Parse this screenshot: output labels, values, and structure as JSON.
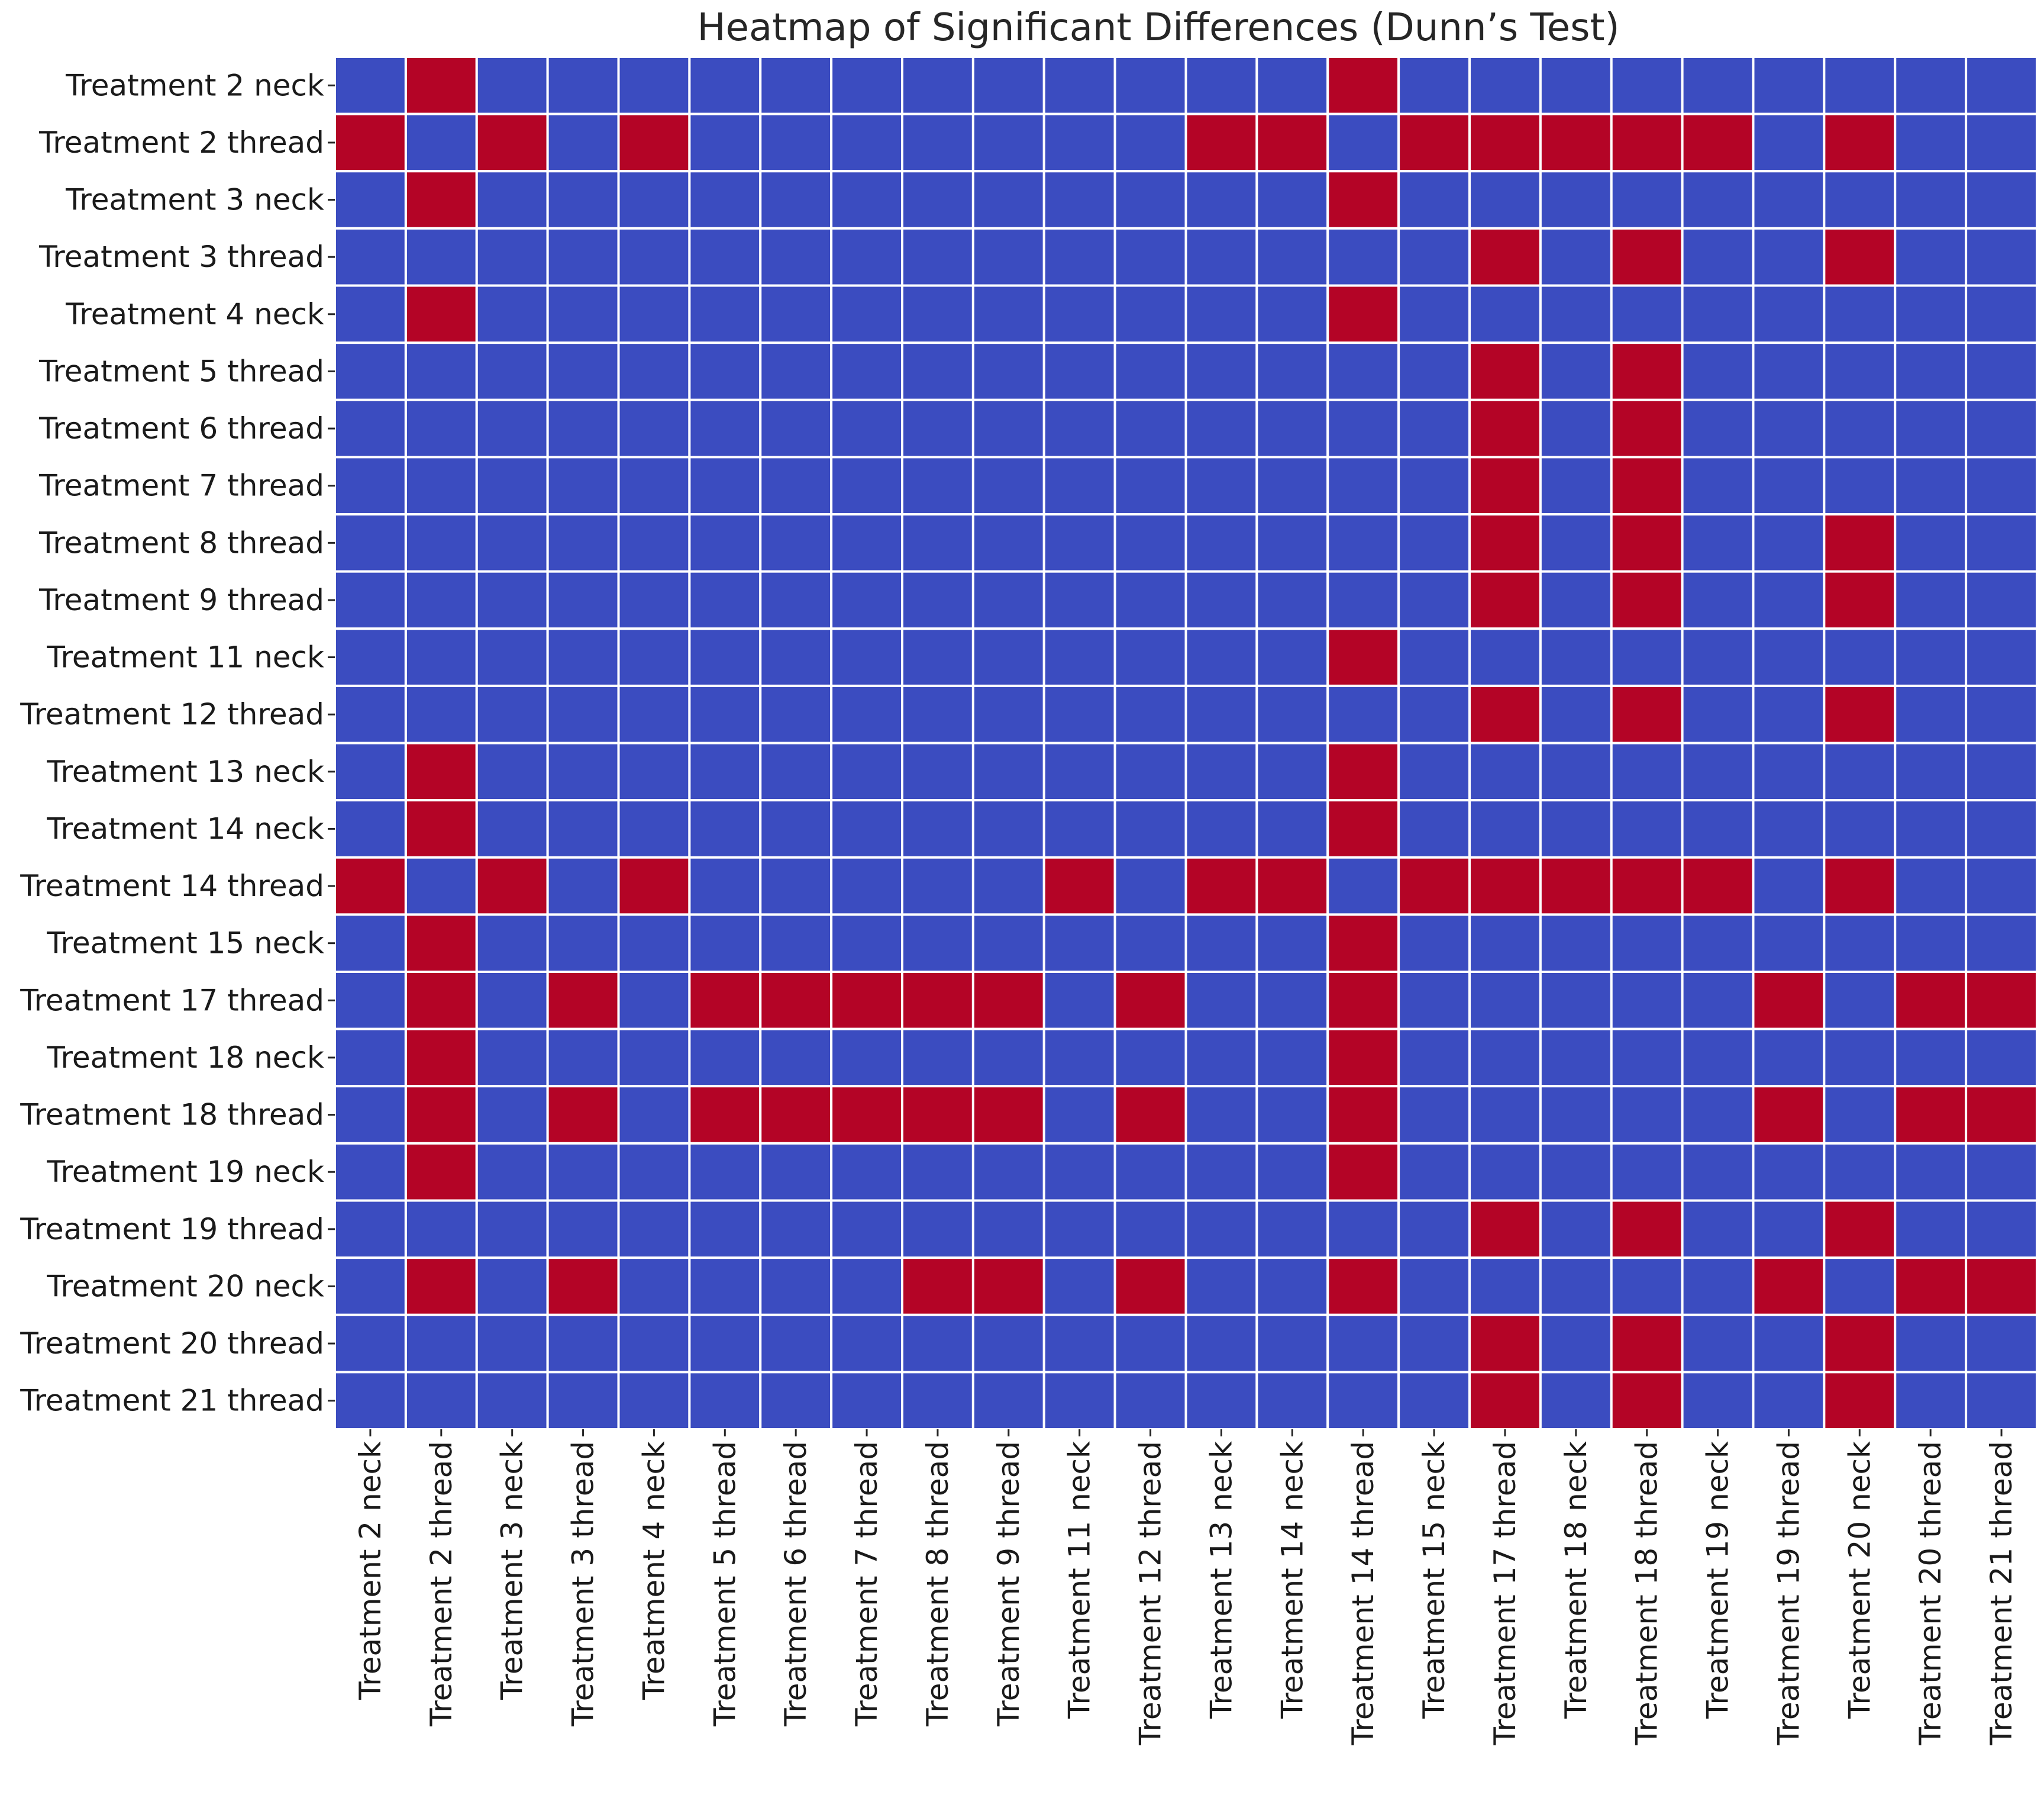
{
  "chart_data": {
    "type": "heatmap",
    "title": "Heatmap of Significant Differences (Dunn’s Test)",
    "xlabel": "",
    "ylabel": "",
    "colorbar": false,
    "value_meaning": "1 = significant difference (red), 0 = not significant (blue)",
    "colors": {
      "significant": "#b40426",
      "not_significant": "#3b4cc0",
      "gridline": "#ffffff"
    },
    "row_labels": [
      "Treatment 2 neck",
      "Treatment 2 thread",
      "Treatment 3 neck",
      "Treatment 3 thread",
      "Treatment 4 neck",
      "Treatment 5 thread",
      "Treatment 6 thread",
      "Treatment 7 thread",
      "Treatment 8 thread",
      "Treatment 9 thread",
      "Treatment 11 neck",
      "Treatment 12 thread",
      "Treatment 13 neck",
      "Treatment 14 neck",
      "Treatment 14 thread",
      "Treatment 15 neck",
      "Treatment 17 thread",
      "Treatment 18 neck",
      "Treatment 18 thread",
      "Treatment 19 neck",
      "Treatment 19 thread",
      "Treatment 20 neck",
      "Treatment 20 thread",
      "Treatment 21 thread"
    ],
    "col_labels": [
      "Treatment 2 neck",
      "Treatment 2 thread",
      "Treatment 3 neck",
      "Treatment 3 thread",
      "Treatment 4 neck",
      "Treatment 5 thread",
      "Treatment 6 thread",
      "Treatment 7 thread",
      "Treatment 8 thread",
      "Treatment 9 thread",
      "Treatment 11 neck",
      "Treatment 12 thread",
      "Treatment 13 neck",
      "Treatment 14 neck",
      "Treatment 14 thread",
      "Treatment 15 neck",
      "Treatment 17 thread",
      "Treatment 18 neck",
      "Treatment 18 thread",
      "Treatment 19 neck",
      "Treatment 19 thread",
      "Treatment 20 neck",
      "Treatment 20 thread",
      "Treatment 21 thread"
    ],
    "matrix": [
      [
        0,
        1,
        0,
        0,
        0,
        0,
        0,
        0,
        0,
        0,
        0,
        0,
        0,
        0,
        1,
        0,
        0,
        0,
        0,
        0,
        0,
        0,
        0,
        0
      ],
      [
        1,
        0,
        1,
        0,
        1,
        0,
        0,
        0,
        0,
        0,
        0,
        0,
        1,
        1,
        0,
        1,
        1,
        1,
        1,
        1,
        0,
        1,
        0,
        0
      ],
      [
        0,
        1,
        0,
        0,
        0,
        0,
        0,
        0,
        0,
        0,
        0,
        0,
        0,
        0,
        1,
        0,
        0,
        0,
        0,
        0,
        0,
        0,
        0,
        0
      ],
      [
        0,
        0,
        0,
        0,
        0,
        0,
        0,
        0,
        0,
        0,
        0,
        0,
        0,
        0,
        0,
        0,
        1,
        0,
        1,
        0,
        0,
        1,
        0,
        0
      ],
      [
        0,
        1,
        0,
        0,
        0,
        0,
        0,
        0,
        0,
        0,
        0,
        0,
        0,
        0,
        1,
        0,
        0,
        0,
        0,
        0,
        0,
        0,
        0,
        0
      ],
      [
        0,
        0,
        0,
        0,
        0,
        0,
        0,
        0,
        0,
        0,
        0,
        0,
        0,
        0,
        0,
        0,
        1,
        0,
        1,
        0,
        0,
        0,
        0,
        0
      ],
      [
        0,
        0,
        0,
        0,
        0,
        0,
        0,
        0,
        0,
        0,
        0,
        0,
        0,
        0,
        0,
        0,
        1,
        0,
        1,
        0,
        0,
        0,
        0,
        0
      ],
      [
        0,
        0,
        0,
        0,
        0,
        0,
        0,
        0,
        0,
        0,
        0,
        0,
        0,
        0,
        0,
        0,
        1,
        0,
        1,
        0,
        0,
        0,
        0,
        0
      ],
      [
        0,
        0,
        0,
        0,
        0,
        0,
        0,
        0,
        0,
        0,
        0,
        0,
        0,
        0,
        0,
        0,
        1,
        0,
        1,
        0,
        0,
        1,
        0,
        0
      ],
      [
        0,
        0,
        0,
        0,
        0,
        0,
        0,
        0,
        0,
        0,
        0,
        0,
        0,
        0,
        0,
        0,
        1,
        0,
        1,
        0,
        0,
        1,
        0,
        0
      ],
      [
        0,
        0,
        0,
        0,
        0,
        0,
        0,
        0,
        0,
        0,
        0,
        0,
        0,
        0,
        1,
        0,
        0,
        0,
        0,
        0,
        0,
        0,
        0,
        0
      ],
      [
        0,
        0,
        0,
        0,
        0,
        0,
        0,
        0,
        0,
        0,
        0,
        0,
        0,
        0,
        0,
        0,
        1,
        0,
        1,
        0,
        0,
        1,
        0,
        0
      ],
      [
        0,
        1,
        0,
        0,
        0,
        0,
        0,
        0,
        0,
        0,
        0,
        0,
        0,
        0,
        1,
        0,
        0,
        0,
        0,
        0,
        0,
        0,
        0,
        0
      ],
      [
        0,
        1,
        0,
        0,
        0,
        0,
        0,
        0,
        0,
        0,
        0,
        0,
        0,
        0,
        1,
        0,
        0,
        0,
        0,
        0,
        0,
        0,
        0,
        0
      ],
      [
        1,
        0,
        1,
        0,
        1,
        0,
        0,
        0,
        0,
        0,
        1,
        0,
        1,
        1,
        0,
        1,
        1,
        1,
        1,
        1,
        0,
        1,
        0,
        0
      ],
      [
        0,
        1,
        0,
        0,
        0,
        0,
        0,
        0,
        0,
        0,
        0,
        0,
        0,
        0,
        1,
        0,
        0,
        0,
        0,
        0,
        0,
        0,
        0,
        0
      ],
      [
        0,
        1,
        0,
        1,
        0,
        1,
        1,
        1,
        1,
        1,
        0,
        1,
        0,
        0,
        1,
        0,
        0,
        0,
        0,
        0,
        1,
        0,
        1,
        1
      ],
      [
        0,
        1,
        0,
        0,
        0,
        0,
        0,
        0,
        0,
        0,
        0,
        0,
        0,
        0,
        1,
        0,
        0,
        0,
        0,
        0,
        0,
        0,
        0,
        0
      ],
      [
        0,
        1,
        0,
        1,
        0,
        1,
        1,
        1,
        1,
        1,
        0,
        1,
        0,
        0,
        1,
        0,
        0,
        0,
        0,
        0,
        1,
        0,
        1,
        1
      ],
      [
        0,
        1,
        0,
        0,
        0,
        0,
        0,
        0,
        0,
        0,
        0,
        0,
        0,
        0,
        1,
        0,
        0,
        0,
        0,
        0,
        0,
        0,
        0,
        0
      ],
      [
        0,
        0,
        0,
        0,
        0,
        0,
        0,
        0,
        0,
        0,
        0,
        0,
        0,
        0,
        0,
        0,
        1,
        0,
        1,
        0,
        0,
        1,
        0,
        0
      ],
      [
        0,
        1,
        0,
        1,
        0,
        0,
        0,
        0,
        1,
        1,
        0,
        1,
        0,
        0,
        1,
        0,
        0,
        0,
        0,
        0,
        1,
        0,
        1,
        1
      ],
      [
        0,
        0,
        0,
        0,
        0,
        0,
        0,
        0,
        0,
        0,
        0,
        0,
        0,
        0,
        0,
        0,
        1,
        0,
        1,
        0,
        0,
        1,
        0,
        0
      ],
      [
        0,
        0,
        0,
        0,
        0,
        0,
        0,
        0,
        0,
        0,
        0,
        0,
        0,
        0,
        0,
        0,
        1,
        0,
        1,
        0,
        0,
        1,
        0,
        0
      ]
    ]
  }
}
